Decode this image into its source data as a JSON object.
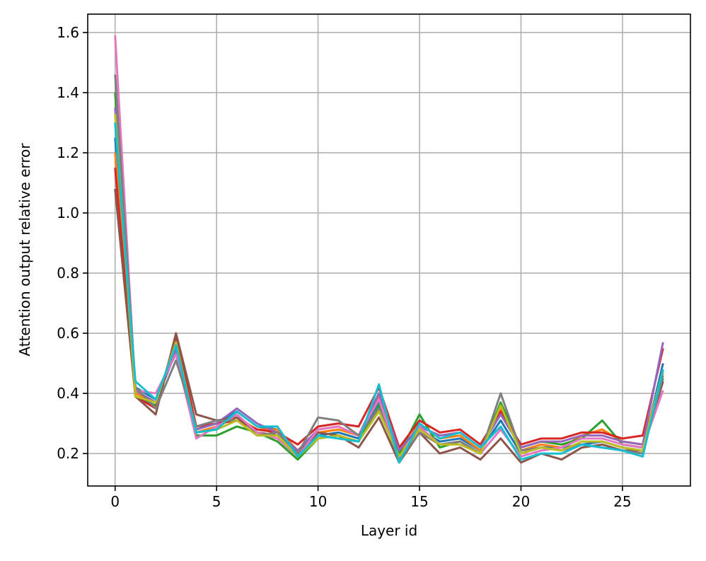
{
  "chart_data": {
    "type": "line",
    "xlabel": "Layer id",
    "ylabel": "Attention output relative error",
    "x": [
      0,
      1,
      2,
      3,
      4,
      5,
      6,
      7,
      8,
      9,
      10,
      11,
      12,
      13,
      14,
      15,
      16,
      17,
      18,
      19,
      20,
      21,
      22,
      23,
      24,
      25,
      26,
      27
    ],
    "series": [
      {
        "color": "#1f77b4",
        "values": [
          1.25,
          0.42,
          0.38,
          0.55,
          0.28,
          0.3,
          0.34,
          0.29,
          0.28,
          0.2,
          0.26,
          0.27,
          0.25,
          0.37,
          0.19,
          0.28,
          0.24,
          0.25,
          0.21,
          0.31,
          0.2,
          0.22,
          0.22,
          0.23,
          0.24,
          0.22,
          0.21,
          0.5
        ]
      },
      {
        "color": "#ff7f0e",
        "values": [
          1.2,
          0.4,
          0.37,
          0.56,
          0.27,
          0.29,
          0.32,
          0.28,
          0.28,
          0.21,
          0.27,
          0.28,
          0.26,
          0.39,
          0.2,
          0.3,
          0.25,
          0.26,
          0.21,
          0.35,
          0.21,
          0.23,
          0.22,
          0.26,
          0.28,
          0.24,
          0.23,
          0.47
        ]
      },
      {
        "color": "#2ca02c",
        "values": [
          1.4,
          0.39,
          0.36,
          0.58,
          0.26,
          0.26,
          0.29,
          0.27,
          0.24,
          0.18,
          0.25,
          0.26,
          0.24,
          0.36,
          0.2,
          0.33,
          0.22,
          0.24,
          0.2,
          0.37,
          0.22,
          0.24,
          0.23,
          0.25,
          0.31,
          0.23,
          0.22,
          0.45
        ]
      },
      {
        "color": "#d62728",
        "values": [
          1.15,
          0.39,
          0.35,
          0.59,
          0.29,
          0.3,
          0.31,
          0.28,
          0.27,
          0.23,
          0.29,
          0.3,
          0.29,
          0.42,
          0.22,
          0.31,
          0.27,
          0.28,
          0.23,
          0.34,
          0.23,
          0.25,
          0.25,
          0.27,
          0.27,
          0.25,
          0.26,
          0.55
        ]
      },
      {
        "color": "#9467bd",
        "values": [
          1.35,
          0.41,
          0.37,
          0.54,
          0.28,
          0.3,
          0.35,
          0.3,
          0.27,
          0.21,
          0.28,
          0.29,
          0.26,
          0.4,
          0.21,
          0.29,
          0.26,
          0.27,
          0.22,
          0.33,
          0.22,
          0.24,
          0.24,
          0.26,
          0.26,
          0.24,
          0.23,
          0.57
        ]
      },
      {
        "color": "#8c564b",
        "values": [
          1.08,
          0.39,
          0.33,
          0.6,
          0.33,
          0.31,
          0.32,
          0.27,
          0.26,
          0.2,
          0.27,
          0.26,
          0.22,
          0.32,
          0.17,
          0.27,
          0.2,
          0.22,
          0.18,
          0.25,
          0.17,
          0.2,
          0.18,
          0.22,
          0.23,
          0.21,
          0.21,
          0.44
        ]
      },
      {
        "color": "#e377c2",
        "values": [
          1.59,
          0.41,
          0.4,
          0.53,
          0.25,
          0.29,
          0.33,
          0.27,
          0.25,
          0.19,
          0.28,
          0.29,
          0.26,
          0.38,
          0.18,
          0.29,
          0.23,
          0.24,
          0.2,
          0.28,
          0.19,
          0.21,
          0.22,
          0.25,
          0.25,
          0.23,
          0.22,
          0.41
        ]
      },
      {
        "color": "#7f7f7f",
        "values": [
          1.46,
          0.42,
          0.35,
          0.51,
          0.29,
          0.31,
          0.31,
          0.26,
          0.27,
          0.2,
          0.32,
          0.31,
          0.26,
          0.35,
          0.18,
          0.27,
          0.23,
          0.24,
          0.2,
          0.4,
          0.21,
          0.22,
          0.21,
          0.23,
          0.22,
          0.21,
          0.2,
          0.46
        ]
      },
      {
        "color": "#bcbd22",
        "values": [
          1.33,
          0.39,
          0.37,
          0.57,
          0.27,
          0.28,
          0.31,
          0.26,
          0.26,
          0.19,
          0.25,
          0.26,
          0.24,
          0.34,
          0.19,
          0.28,
          0.23,
          0.23,
          0.2,
          0.36,
          0.2,
          0.22,
          0.21,
          0.24,
          0.24,
          0.22,
          0.21,
          0.48
        ]
      },
      {
        "color": "#17becf",
        "values": [
          1.3,
          0.44,
          0.38,
          0.56,
          0.27,
          0.28,
          0.34,
          0.29,
          0.29,
          0.19,
          0.26,
          0.25,
          0.24,
          0.43,
          0.17,
          0.3,
          0.25,
          0.27,
          0.22,
          0.29,
          0.18,
          0.2,
          0.2,
          0.23,
          0.22,
          0.21,
          0.19,
          0.48
        ]
      }
    ],
    "xlim": [
      -1.35,
      28.35
    ],
    "ylim": [
      0.092,
      1.661
    ],
    "xticks": [
      0,
      5,
      10,
      15,
      20,
      25
    ],
    "yticks": [
      0.2,
      0.4,
      0.6,
      0.8,
      {
        "value": 1,
        "label": "1.0"
      },
      1.2,
      1.4,
      1.6
    ],
    "grid": true
  }
}
